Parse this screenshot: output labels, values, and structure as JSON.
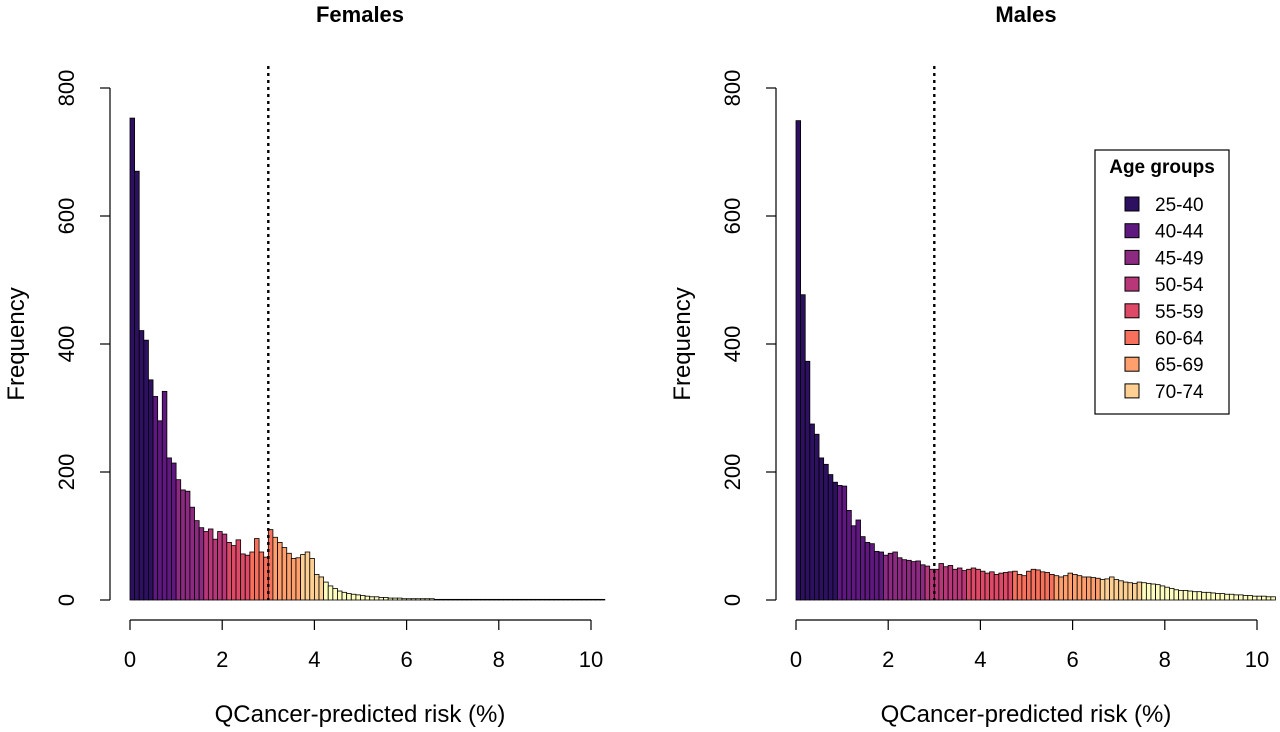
{
  "chart_data": [
    {
      "type": "bar",
      "title": "Females",
      "xlabel": "QCancer-predicted risk (%)",
      "ylabel": "Frequency",
      "xlim": [
        0,
        10.4
      ],
      "ylim": [
        0,
        800
      ],
      "xticks": [
        "0",
        "2",
        "4",
        "6",
        "8",
        "10"
      ],
      "yticks": [
        "0",
        "200",
        "400",
        "600",
        "800"
      ],
      "bin_width": 0.1,
      "reference_line_x": 3,
      "stacked": true,
      "heights": [
        753,
        670,
        421,
        406,
        344,
        318,
        280,
        326,
        222,
        214,
        188,
        172,
        170,
        145,
        124,
        113,
        107,
        111,
        95,
        107,
        103,
        90,
        85,
        94,
        72,
        70,
        75,
        96,
        75,
        67,
        110,
        98,
        90,
        82,
        73,
        65,
        66,
        71,
        75,
        65,
        40,
        36,
        28,
        22,
        18,
        14,
        12,
        10,
        9,
        8,
        7,
        6,
        5,
        5,
        4,
        4,
        3,
        3,
        3,
        2,
        2,
        2,
        2,
        2,
        2,
        2,
        1,
        1,
        1,
        1,
        1,
        1,
        1,
        1,
        1,
        1,
        1,
        1,
        1,
        1,
        1,
        1,
        1,
        1,
        1,
        1,
        1,
        1,
        1,
        1,
        1,
        1,
        1,
        1,
        1,
        1,
        1,
        1,
        1,
        1,
        1,
        1,
        1
      ],
      "age_colors": [
        "#2d1160",
        "#5f187f",
        "#8c2981",
        "#b73779",
        "#de4968",
        "#f7705c",
        "#fe9f6d",
        "#fecf92",
        "#fcfdbf"
      ]
    },
    {
      "type": "bar",
      "title": "Males",
      "xlabel": "QCancer-predicted risk (%)",
      "ylabel": "Frequency",
      "xlim": [
        0,
        10.4
      ],
      "ylim": [
        0,
        800
      ],
      "xticks": [
        "0",
        "2",
        "4",
        "6",
        "8",
        "10"
      ],
      "yticks": [
        "0",
        "200",
        "400",
        "600",
        "800"
      ],
      "bin_width": 0.1,
      "reference_line_x": 3,
      "stacked": true,
      "heights": [
        749,
        477,
        373,
        275,
        259,
        222,
        212,
        196,
        184,
        179,
        178,
        140,
        116,
        125,
        99,
        90,
        88,
        76,
        75,
        70,
        73,
        75,
        66,
        63,
        62,
        60,
        61,
        55,
        53,
        48,
        48,
        57,
        52,
        54,
        48,
        50,
        46,
        48,
        50,
        48,
        45,
        42,
        44,
        40,
        42,
        43,
        44,
        45,
        40,
        38,
        45,
        48,
        47,
        44,
        43,
        40,
        38,
        36,
        38,
        42,
        40,
        38,
        36,
        36,
        35,
        34,
        32,
        33,
        36,
        32,
        30,
        28,
        27,
        26,
        28,
        27,
        26,
        25,
        24,
        22,
        20,
        18,
        16,
        15,
        15,
        14,
        13,
        13,
        12,
        12,
        11,
        10,
        10,
        9,
        9,
        8,
        8,
        7,
        7,
        6,
        6,
        6,
        5,
        5
      ],
      "age_colors": [
        "#2d1160",
        "#5f187f",
        "#8c2981",
        "#b73779",
        "#de4968",
        "#f7705c",
        "#fe9f6d",
        "#fecf92",
        "#fcfdbf"
      ]
    }
  ],
  "legend": {
    "title": "Age groups",
    "items": [
      {
        "label": "25-40",
        "color": "#2d1160"
      },
      {
        "label": "40-44",
        "color": "#5f187f"
      },
      {
        "label": "45-49",
        "color": "#8c2981"
      },
      {
        "label": "50-54",
        "color": "#b73779"
      },
      {
        "label": "55-59",
        "color": "#de4968"
      },
      {
        "label": "60-64",
        "color": "#f7705c"
      },
      {
        "label": "65-69",
        "color": "#fe9f6d"
      },
      {
        "label": "70-74",
        "color": "#fecf92"
      }
    ]
  }
}
